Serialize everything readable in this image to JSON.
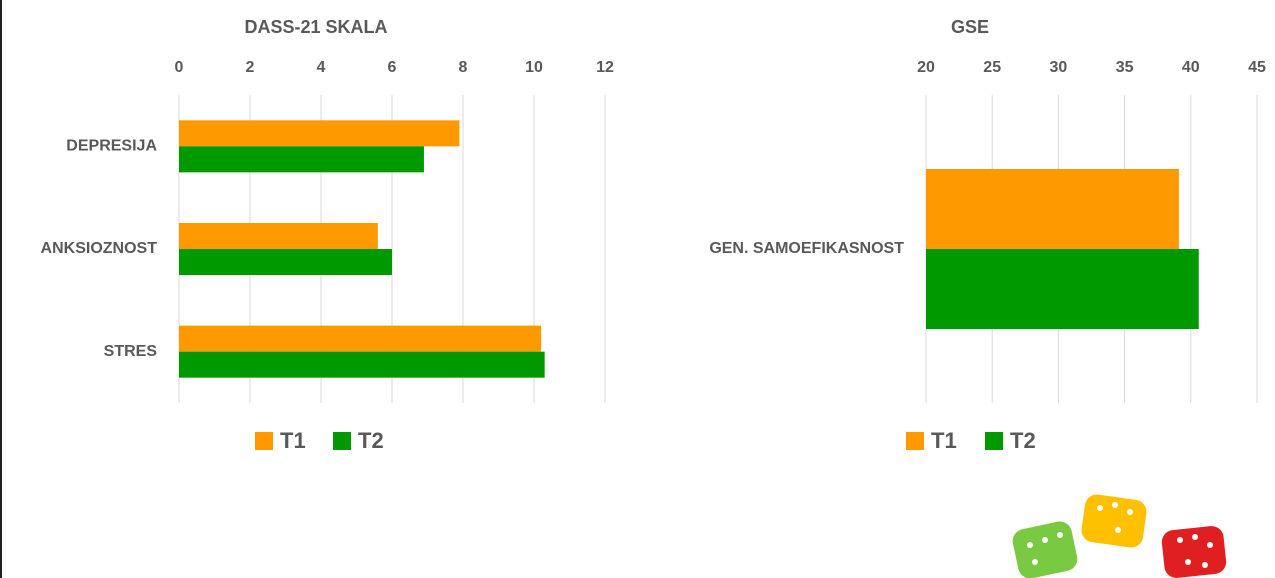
{
  "chart_data": [
    {
      "type": "bar",
      "orientation": "horizontal",
      "title": "DASS-21 SKALA",
      "categories": [
        "DEPRESIJA",
        "ANKSIOZNOST",
        "STRES"
      ],
      "series": [
        {
          "name": "T1",
          "color": "#ff9900",
          "values": [
            7.9,
            5.6,
            10.2
          ]
        },
        {
          "name": "T2",
          "color": "#009900",
          "values": [
            6.9,
            6.0,
            10.3
          ]
        }
      ],
      "xlim": [
        0,
        12
      ],
      "xticks": [
        0,
        2,
        4,
        6,
        8,
        10,
        12
      ],
      "grid": true,
      "legend": "bottom"
    },
    {
      "type": "bar",
      "orientation": "horizontal",
      "title": "GSE",
      "categories": [
        "GEN. SAMOEFIKASNOST"
      ],
      "series": [
        {
          "name": "T1",
          "color": "#ff9900",
          "values": [
            39.1
          ]
        },
        {
          "name": "T2",
          "color": "#009900",
          "values": [
            40.6
          ]
        }
      ],
      "xlim": [
        20,
        45
      ],
      "xticks": [
        20,
        25,
        30,
        35,
        40,
        45
      ],
      "grid": true,
      "legend": "bottom"
    }
  ]
}
